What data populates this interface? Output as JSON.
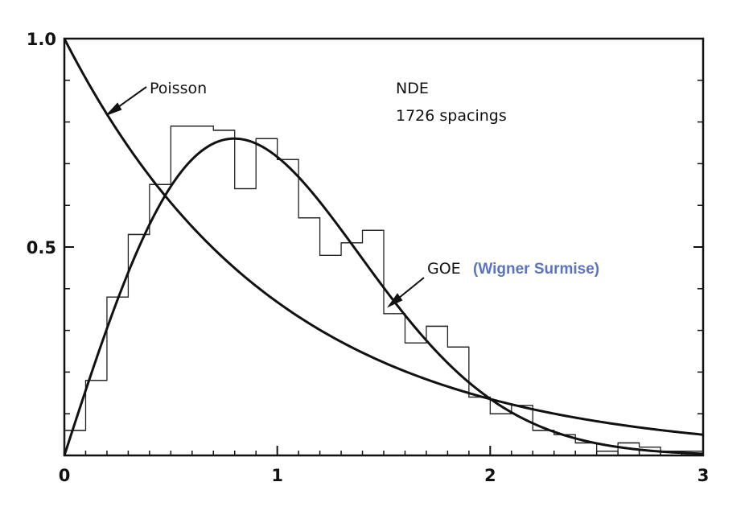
{
  "chart_data": {
    "type": "line",
    "title": "",
    "xlabel": "",
    "ylabel": "",
    "xlim": [
      0,
      3
    ],
    "ylim": [
      0,
      1
    ],
    "grid": false,
    "x_ticks": [
      {
        "value": 0,
        "label": "0"
      },
      {
        "value": 1,
        "label": "1"
      },
      {
        "value": 2,
        "label": "2"
      },
      {
        "value": 3,
        "label": "3"
      }
    ],
    "y_ticks": [
      {
        "value": 0.5,
        "label": "0.5"
      },
      {
        "value": 1.0,
        "label": "1.0"
      }
    ],
    "y_minor_ticks": [
      0.1,
      0.2,
      0.3,
      0.4,
      0.6,
      0.7,
      0.8,
      0.9
    ],
    "x_minor_ticks": [
      0.1,
      0.2,
      0.3,
      0.4,
      0.5,
      0.6,
      0.7,
      0.8,
      0.9,
      1.1,
      1.2,
      1.3,
      1.4,
      1.5,
      1.6,
      1.7,
      1.8,
      1.9,
      2.1,
      2.2,
      2.3,
      2.4,
      2.5,
      2.6,
      2.7,
      2.8,
      2.9
    ],
    "annotations": {
      "dataset": "NDE",
      "count": "1726  spacings",
      "poisson_label": "Poisson",
      "goe_label": "GOE",
      "goe_note": "(Wigner Surmise)"
    },
    "series": [
      {
        "name": "Poisson",
        "kind": "curve",
        "function": "exp(-s)"
      },
      {
        "name": "GOE",
        "kind": "curve",
        "function": "(pi/2) s exp(-pi s^2 / 4)"
      },
      {
        "name": "",
        "kind": "histogram",
        "bin_width": 0.1,
        "bin_edges": [
          0,
          0.1,
          0.2,
          0.3,
          0.4,
          0.5,
          0.6,
          0.7,
          0.8,
          0.9,
          1.0,
          1.1,
          1.2,
          1.3,
          1.4,
          1.5,
          1.6,
          1.7,
          1.8,
          1.9,
          2.0,
          2.1,
          2.2,
          2.3,
          2.4,
          2.5,
          2.6,
          2.7,
          2.8,
          2.9,
          3.0
        ],
        "values": [
          0.06,
          0.18,
          0.38,
          0.53,
          0.65,
          0.79,
          0.79,
          0.78,
          0.64,
          0.76,
          0.71,
          0.57,
          0.48,
          0.51,
          0.54,
          0.34,
          0.27,
          0.31,
          0.26,
          0.14,
          0.1,
          0.12,
          0.06,
          0.05,
          0.03,
          0.01,
          0.03,
          0.02,
          0.01,
          0.01
        ]
      }
    ]
  }
}
